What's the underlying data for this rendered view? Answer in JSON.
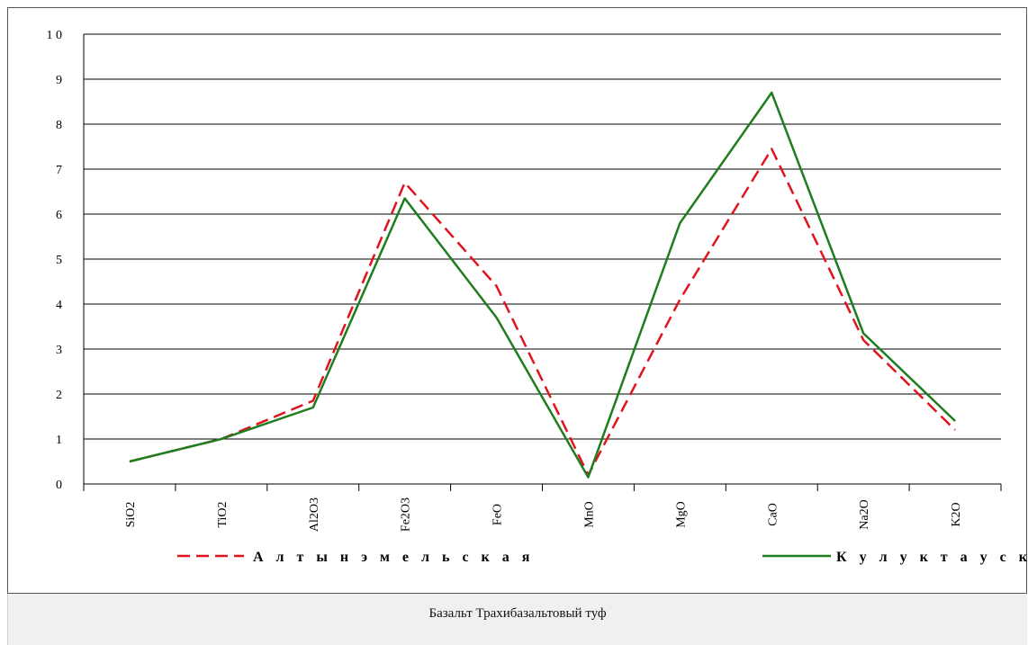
{
  "chart_data": {
    "type": "line",
    "categories": [
      "SiO2",
      "TiO2",
      "Al2O3",
      "Fe2O3",
      "FeO",
      "MnO",
      "MgO",
      "CaO",
      "Na2O",
      "K2O"
    ],
    "ylim": [
      0,
      10
    ],
    "yticks": [
      0,
      1,
      2,
      3,
      4,
      5,
      6,
      7,
      8,
      9,
      10
    ],
    "ytick_labels": [
      "0",
      "1",
      "2",
      "3",
      "4",
      "5",
      "6",
      "7",
      "8",
      "9",
      "1 0"
    ],
    "grid": "horizontal",
    "legend_placement": "bottom",
    "series": [
      {
        "name": "А л т ы н э м е л ь с к а я",
        "color": "#e0141e",
        "style": "dashed",
        "values": [
          0.5,
          1.0,
          1.85,
          6.7,
          4.4,
          0.2,
          4.1,
          7.45,
          3.2,
          1.2
        ]
      },
      {
        "name": "К у л у к т а у с к а я",
        "color": "#1e7d1e",
        "style": "solid",
        "values": [
          0.5,
          1.0,
          1.7,
          6.35,
          3.7,
          0.15,
          5.8,
          8.7,
          3.35,
          1.4
        ]
      }
    ]
  },
  "caption": "Базальт Трахибазальтовый туф"
}
